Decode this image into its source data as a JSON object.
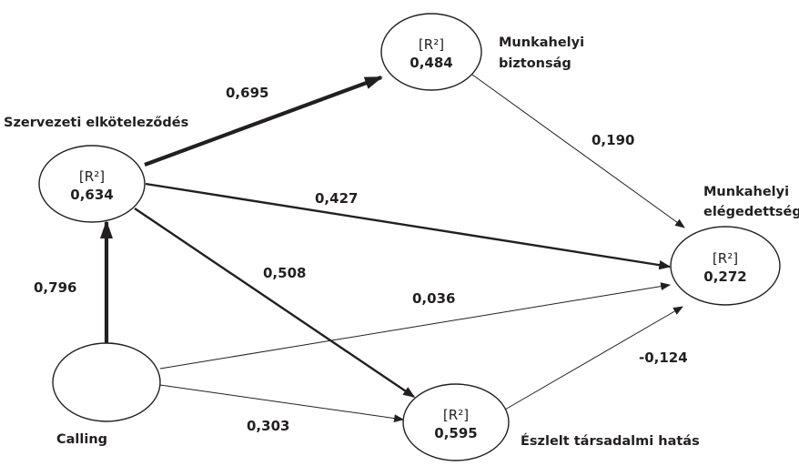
{
  "nodes": [
    {
      "id": "szervezeti",
      "label": [
        "Szervezeti elköteleződés"
      ],
      "r2_label": "[R²]",
      "r2": "0,634"
    },
    {
      "id": "biztonsag",
      "label": [
        "Munkahelyi",
        "biztonság"
      ],
      "r2_label": "[R²]",
      "r2": "0,484"
    },
    {
      "id": "elegedettseg",
      "label": [
        "Munkahelyi",
        "elégedettség"
      ],
      "r2_label": "[R²]",
      "r2": "0,272"
    },
    {
      "id": "calling",
      "label": [
        "Calling"
      ],
      "r2_label": "",
      "r2": ""
    },
    {
      "id": "eszlelt",
      "label": [
        "Észlelt társadalmi hatás"
      ],
      "r2_label": "[R²]",
      "r2": "0,595"
    }
  ],
  "edges": [
    {
      "id": "szervezeti-biztonsag",
      "from": "szervezeti",
      "to": "biztonsag",
      "coef": "0,695",
      "weight": "strong"
    },
    {
      "id": "biztonsag-elegedettseg",
      "from": "biztonsag",
      "to": "elegedettseg",
      "coef": "0,190",
      "weight": "weak"
    },
    {
      "id": "szervezeti-elegedettseg",
      "from": "szervezeti",
      "to": "elegedettseg",
      "coef": "0,427",
      "weight": "medium"
    },
    {
      "id": "szervezeti-eszlelt",
      "from": "szervezeti",
      "to": "eszlelt",
      "coef": "0,508",
      "weight": "medium"
    },
    {
      "id": "calling-szervezeti",
      "from": "calling",
      "to": "szervezeti",
      "coef": "0,796",
      "weight": "strong"
    },
    {
      "id": "calling-elegedettseg",
      "from": "calling",
      "to": "elegedettseg",
      "coef": "0,036",
      "weight": "weak"
    },
    {
      "id": "calling-eszlelt",
      "from": "calling",
      "to": "eszlelt",
      "coef": "0,303",
      "weight": "weak"
    },
    {
      "id": "eszlelt-elegedettseg",
      "from": "eszlelt",
      "to": "elegedettseg",
      "coef": "-0,124",
      "weight": "weak"
    }
  ]
}
